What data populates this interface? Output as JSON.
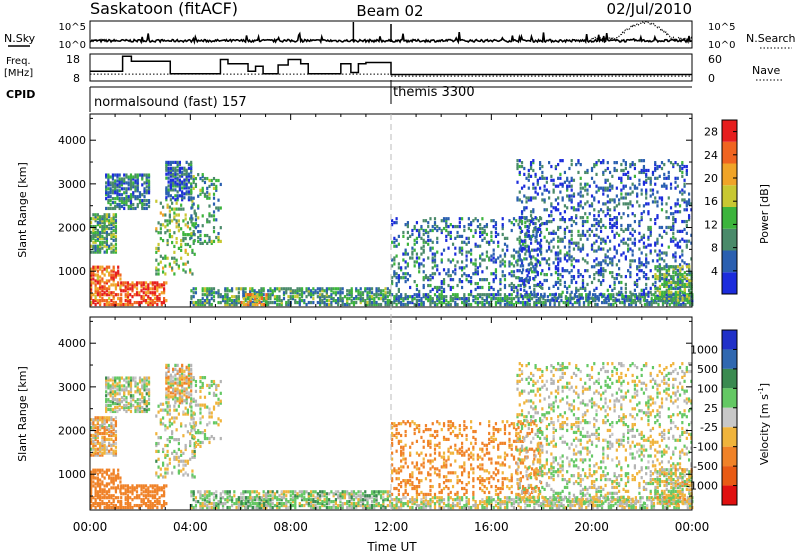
{
  "header": {
    "station": "Saskatoon (fitACF)",
    "beam": "Beam 02",
    "date": "02/Jul/2010"
  },
  "noise_panel": {
    "left_label": "N.Sky",
    "left_ticks": [
      "10^5",
      "10^0"
    ],
    "right_ticks": [
      "10^5",
      "10^0"
    ],
    "right_label": "N.Search",
    "search_burst_start_hour": 21,
    "search_burst_end_hour": 23.2
  },
  "freq_panel": {
    "left_label_1": "Freq.",
    "left_label_2": "[MHz]",
    "left_ticks": [
      "18",
      "8"
    ],
    "right_ticks": [
      "60",
      "0"
    ],
    "right_label": "Nave",
    "freq_ylim": [
      8,
      18
    ],
    "freq_steps": [
      {
        "start": 0.0,
        "end": 1.3,
        "freq": 11.5
      },
      {
        "start": 1.3,
        "end": 1.65,
        "freq": 17.5
      },
      {
        "start": 1.65,
        "end": 3.2,
        "freq": 15.5
      },
      {
        "start": 3.2,
        "end": 5.2,
        "freq": 10.5
      },
      {
        "start": 5.2,
        "end": 5.5,
        "freq": 16.2
      },
      {
        "start": 5.5,
        "end": 6.3,
        "freq": 14.5
      },
      {
        "start": 6.3,
        "end": 6.6,
        "freq": 11.5
      },
      {
        "start": 6.6,
        "end": 6.9,
        "freq": 13.5
      },
      {
        "start": 6.9,
        "end": 7.5,
        "freq": 10.5
      },
      {
        "start": 7.5,
        "end": 7.9,
        "freq": 14.0
      },
      {
        "start": 7.9,
        "end": 8.4,
        "freq": 16.2
      },
      {
        "start": 8.4,
        "end": 8.7,
        "freq": 14.5
      },
      {
        "start": 8.7,
        "end": 10.0,
        "freq": 10.5
      },
      {
        "start": 10.0,
        "end": 10.4,
        "freq": 14.5
      },
      {
        "start": 10.4,
        "end": 10.7,
        "freq": 11.0
      },
      {
        "start": 10.7,
        "end": 11.0,
        "freq": 14.5
      },
      {
        "start": 11.0,
        "end": 12.0,
        "freq": 15.0
      },
      {
        "start": 12.0,
        "end": 24.0,
        "freq": 10.2
      }
    ],
    "nave_level": 14
  },
  "cpid_panel": {
    "label": "CPID",
    "mode_1": "normalsound (fast) 157",
    "mode_2": "themis 3300",
    "mode_change_hour": 12
  },
  "x_axis": {
    "label": "Time UT",
    "ticks": [
      "00:00",
      "04:00",
      "08:00",
      "12:00",
      "16:00",
      "20:00",
      "00:00"
    ],
    "range": [
      0,
      24
    ]
  },
  "power_panel": {
    "ylabel": "Slant Range [km]",
    "yticks": [
      "1000",
      "2000",
      "3000",
      "4000"
    ],
    "ylim": [
      180,
      4600
    ],
    "colorbar_label": "Power [dB]",
    "colorbar_ticks": [
      "4",
      "8",
      "12",
      "16",
      "20",
      "24",
      "28"
    ],
    "colorbar_range": [
      0,
      30
    ],
    "colors": [
      "#1c2cdc",
      "#2a5fb0",
      "#4a8a6a",
      "#3cb43c",
      "#c8c832",
      "#f0a428",
      "#f06420",
      "#e61e1e"
    ]
  },
  "velocity_panel": {
    "ylabel": "Slant Range [km]",
    "yticks": [
      "1000",
      "2000",
      "3000",
      "4000"
    ],
    "ylim": [
      180,
      4600
    ],
    "colorbar_label": "Velocity [m s-1]",
    "colorbar_ticks": [
      "1000",
      "500",
      "100",
      "25",
      "-25",
      "-100",
      "-500",
      "-1000"
    ],
    "colors": [
      "#2030c8",
      "#3068b0",
      "#3a8a50",
      "#64c864",
      "#c8c8c8",
      "#f0b43c",
      "#f08228",
      "#e85a14",
      "#e01010"
    ],
    "ground_scatter": "#b4b4b4"
  },
  "chart_data": {
    "type": "heatmap",
    "title": "Saskatoon (fitACF)  Beam 02  02/Jul/2010",
    "xlabel": "Time UT",
    "ylabel": "Slant Range [km]",
    "x_range_hours": [
      0,
      24
    ],
    "y_range_km": [
      180,
      4600
    ],
    "panels": [
      "Power [dB]",
      "Velocity [m s-1]"
    ],
    "scatter_regions": [
      {
        "t0": 0.0,
        "t1": 1.2,
        "r0": 200,
        "r1": 1100,
        "power": 24,
        "vel": -300
      },
      {
        "t0": 1.2,
        "t1": 3.0,
        "r0": 200,
        "r1": 700,
        "power": 26,
        "vel": -250
      },
      {
        "t0": 0.0,
        "t1": 1.0,
        "r0": 1400,
        "r1": 2300,
        "power": 12,
        "vel": -60
      },
      {
        "t0": 0.6,
        "t1": 2.4,
        "r0": 2400,
        "r1": 3200,
        "power": 8,
        "vel": 10
      },
      {
        "t0": 2.6,
        "t1": 4.2,
        "r0": 900,
        "r1": 2600,
        "power": 14,
        "vel": 5
      },
      {
        "t0": 3.0,
        "t1": 4.0,
        "r0": 2600,
        "r1": 3500,
        "power": 6,
        "vel": -40
      },
      {
        "t0": 4.0,
        "t1": 5.2,
        "r0": 1600,
        "r1": 3200,
        "power": 10,
        "vel": 0
      },
      {
        "t0": 4.0,
        "t1": 12.0,
        "r0": 200,
        "r1": 600,
        "power": 10,
        "vel": 40
      },
      {
        "t0": 6.0,
        "t1": 7.0,
        "r0": 200,
        "r1": 450,
        "power": 20,
        "vel": 60
      },
      {
        "t0": 12.0,
        "t1": 24.0,
        "r0": 200,
        "r1": 450,
        "power": 9,
        "vel": 0
      },
      {
        "t0": 12.0,
        "t1": 18.0,
        "r0": 500,
        "r1": 2200,
        "power": 7,
        "vel": -150
      },
      {
        "t0": 17.0,
        "t1": 24.0,
        "r0": 300,
        "r1": 3500,
        "power": 6,
        "vel": 0
      },
      {
        "t0": 22.5,
        "t1": 24.0,
        "r0": 300,
        "r1": 1100,
        "power": 12,
        "vel": -20
      }
    ]
  }
}
